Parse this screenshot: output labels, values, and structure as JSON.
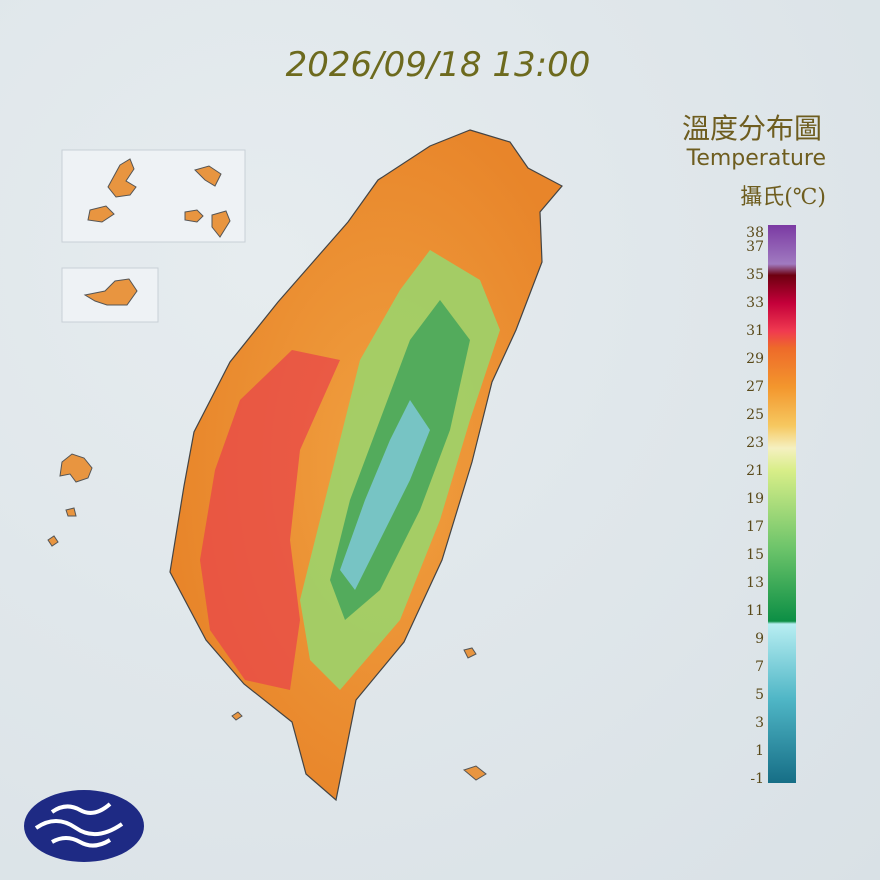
{
  "header": {
    "datetime": "2026/09/18 13:00",
    "title_zh": "溫度分布圖",
    "title_en": "Temperature",
    "unit": "攝氏(℃)"
  },
  "legend": {
    "labels": [
      38,
      37,
      35,
      33,
      31,
      29,
      27,
      25,
      23,
      21,
      19,
      17,
      15,
      13,
      11,
      9,
      7,
      5,
      3,
      1,
      -1
    ]
  }
}
